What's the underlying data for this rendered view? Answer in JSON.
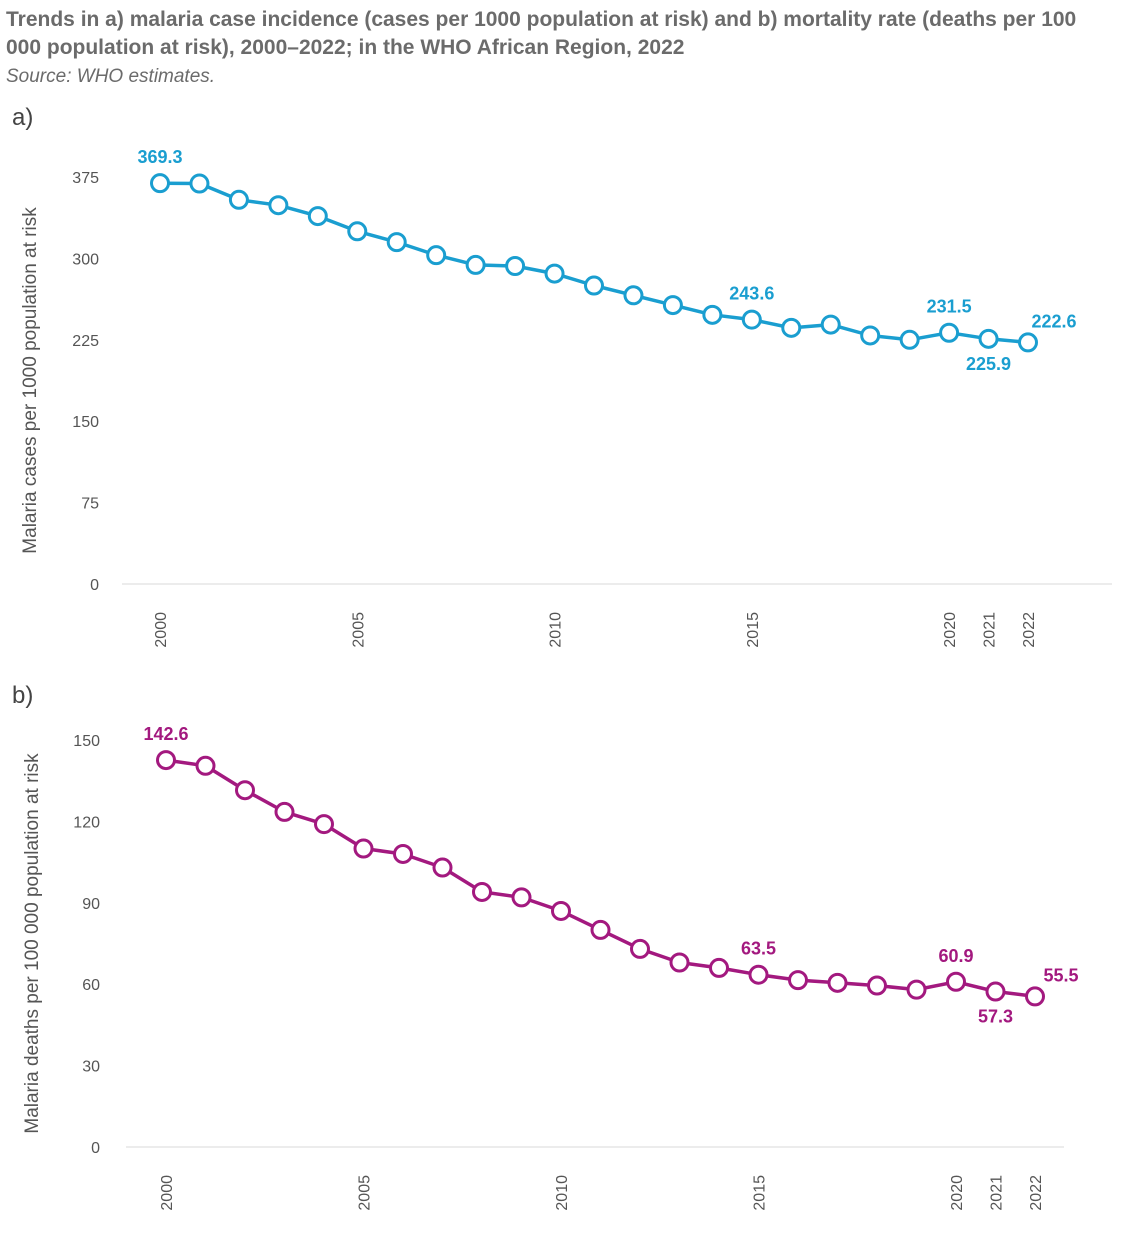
{
  "title": "Trends in a) malaria case incidence (cases per 1000 population at risk) and b) mortality rate (deaths per 100 000 population at risk), 2000–2022; in the WHO African Region, 2022",
  "source": "Source: WHO estimates.",
  "chart_data": [
    {
      "type": "line",
      "panel_label": "a)",
      "title": "",
      "ylabel": "Malaria cases per 1000 population at risk",
      "xlabel": "",
      "color": "#1a9ed0",
      "ylim": [
        0,
        375
      ],
      "yticks": [
        "0",
        "75",
        "150",
        "225",
        "300",
        "375"
      ],
      "xticks": [
        "2000",
        "2005",
        "2010",
        "2015",
        "2020",
        "2021",
        "2022"
      ],
      "x": [
        2000,
        2001,
        2002,
        2003,
        2004,
        2005,
        2006,
        2007,
        2008,
        2009,
        2010,
        2011,
        2012,
        2013,
        2014,
        2015,
        2016,
        2017,
        2018,
        2019,
        2020,
        2021,
        2022
      ],
      "values": [
        369.3,
        369,
        354,
        349,
        339,
        325,
        315,
        303,
        294,
        293,
        286,
        275,
        266,
        257,
        248,
        243.6,
        236,
        239,
        229,
        225,
        231.5,
        225.9,
        222.6
      ],
      "labels": [
        {
          "year": 2000,
          "text": "369.3",
          "pos": "above"
        },
        {
          "year": 2015,
          "text": "243.6",
          "pos": "above"
        },
        {
          "year": 2020,
          "text": "231.5",
          "pos": "above"
        },
        {
          "year": 2021,
          "text": "225.9",
          "pos": "below"
        },
        {
          "year": 2022,
          "text": "222.6",
          "pos": "above-right"
        }
      ]
    },
    {
      "type": "line",
      "panel_label": "b)",
      "title": "",
      "ylabel": "Malaria deaths per 100 000 population at risk",
      "xlabel": "",
      "color": "#a3197f",
      "ylim": [
        0,
        150
      ],
      "yticks": [
        "0",
        "30",
        "60",
        "90",
        "120",
        "150"
      ],
      "xticks": [
        "2000",
        "2005",
        "2010",
        "2015",
        "2020",
        "2021",
        "2022"
      ],
      "x": [
        2000,
        2001,
        2002,
        2003,
        2004,
        2005,
        2006,
        2007,
        2008,
        2009,
        2010,
        2011,
        2012,
        2013,
        2014,
        2015,
        2016,
        2017,
        2018,
        2019,
        2020,
        2021,
        2022
      ],
      "values": [
        142.6,
        140.5,
        131.5,
        123.5,
        119,
        110,
        108,
        103,
        94,
        92,
        87,
        80,
        73,
        68,
        66,
        63.5,
        61.5,
        60.5,
        59.5,
        58,
        60.9,
        57.3,
        55.5
      ],
      "labels": [
        {
          "year": 2000,
          "text": "142.6",
          "pos": "above"
        },
        {
          "year": 2015,
          "text": "63.5",
          "pos": "above"
        },
        {
          "year": 2020,
          "text": "60.9",
          "pos": "above"
        },
        {
          "year": 2021,
          "text": "57.3",
          "pos": "below"
        },
        {
          "year": 2022,
          "text": "55.5",
          "pos": "above-right"
        }
      ]
    }
  ]
}
